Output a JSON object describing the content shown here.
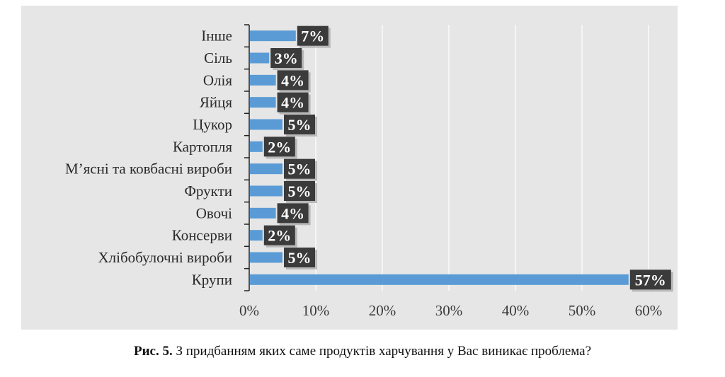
{
  "chart_data": {
    "type": "bar",
    "orientation": "horizontal",
    "categories": [
      "Крупи",
      "Хлібобулочні вироби",
      "Консерви",
      "Овочі",
      "Фрукти",
      "М’ясні та ковбасні вироби",
      "Картопля",
      "Цукор",
      "Яйця",
      "Олія",
      "Сіль",
      "Інше"
    ],
    "values": [
      57,
      5,
      2,
      4,
      5,
      5,
      2,
      5,
      4,
      4,
      3,
      7
    ],
    "data_labels": [
      "57%",
      "5%",
      "2%",
      "4%",
      "5%",
      "5%",
      "2%",
      "5%",
      "4%",
      "4%",
      "3%",
      "7%"
    ],
    "xlim": [
      0,
      60
    ],
    "x_ticks": [
      0,
      10,
      20,
      30,
      40,
      50,
      60
    ],
    "x_tick_labels": [
      "0%",
      "10%",
      "20%",
      "30%",
      "40%",
      "50%",
      "60%"
    ],
    "grid": true,
    "bar_color": "#5b9bd5",
    "label_box_color": "#3b3b3b",
    "title": "",
    "xlabel": "",
    "ylabel": ""
  },
  "caption": {
    "prefix": "Рис. 5.",
    "text": " З придбанням яких саме продуктів харчування у Вас виникає проблема?"
  }
}
